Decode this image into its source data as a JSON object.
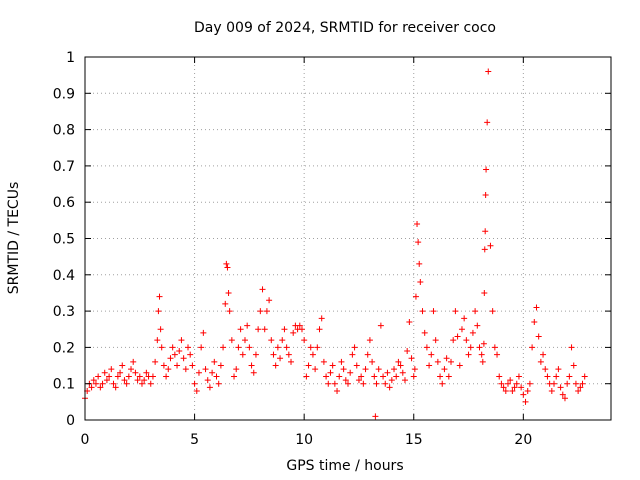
{
  "chart_data": {
    "type": "scatter",
    "title": "Day 009 of 2024, SRMTID for receiver coco",
    "xlabel": "GPS time / hours",
    "ylabel": "SRMTID / TECUs",
    "xlim": [
      0,
      24
    ],
    "ylim": [
      0,
      1
    ],
    "x_ticks": [
      0,
      5,
      10,
      15,
      20
    ],
    "x_tick_labels": [
      "0",
      "5",
      "10",
      "15",
      "20"
    ],
    "y_ticks": [
      0,
      0.1,
      0.2,
      0.3,
      0.4,
      0.5,
      0.6,
      0.7,
      0.8,
      0.9,
      1
    ],
    "y_tick_labels": [
      "0",
      "0.1",
      "0.2",
      "0.3",
      "0.4",
      "0.5",
      "0.6",
      "0.7",
      "0.8",
      "0.9",
      "1"
    ],
    "grid": true,
    "marker": "+",
    "color": "#ff0000",
    "series": [
      {
        "name": "SRMTID",
        "x": [
          0.0,
          0.1,
          0.2,
          0.3,
          0.4,
          0.5,
          0.6,
          0.7,
          0.8,
          0.9,
          1.0,
          1.1,
          1.2,
          1.3,
          1.4,
          1.5,
          1.6,
          1.7,
          1.8,
          1.9,
          2.0,
          2.1,
          2.2,
          2.3,
          2.4,
          2.5,
          2.6,
          2.7,
          2.8,
          2.9,
          3.0,
          3.1,
          3.2,
          3.3,
          3.35,
          3.4,
          3.45,
          3.5,
          3.6,
          3.7,
          3.8,
          3.9,
          4.0,
          4.1,
          4.2,
          4.3,
          4.4,
          4.5,
          4.6,
          4.7,
          4.8,
          4.9,
          5.0,
          5.1,
          5.2,
          5.3,
          5.4,
          5.5,
          5.6,
          5.7,
          5.8,
          5.9,
          6.0,
          6.1,
          6.2,
          6.3,
          6.4,
          6.45,
          6.5,
          6.55,
          6.6,
          6.7,
          6.8,
          6.9,
          7.0,
          7.1,
          7.2,
          7.3,
          7.4,
          7.5,
          7.6,
          7.7,
          7.8,
          7.9,
          8.0,
          8.1,
          8.2,
          8.3,
          8.4,
          8.5,
          8.6,
          8.7,
          8.8,
          8.9,
          9.0,
          9.1,
          9.2,
          9.3,
          9.4,
          9.5,
          9.6,
          9.7,
          9.8,
          9.9,
          10.0,
          10.1,
          10.2,
          10.3,
          10.4,
          10.5,
          10.6,
          10.7,
          10.8,
          10.9,
          11.0,
          11.1,
          11.2,
          11.3,
          11.4,
          11.5,
          11.6,
          11.7,
          11.8,
          11.9,
          12.0,
          12.1,
          12.2,
          12.3,
          12.4,
          12.5,
          12.6,
          12.7,
          12.8,
          12.9,
          13.0,
          13.1,
          13.2,
          13.25,
          13.3,
          13.4,
          13.5,
          13.6,
          13.7,
          13.8,
          13.9,
          14.0,
          14.1,
          14.2,
          14.3,
          14.4,
          14.5,
          14.6,
          14.7,
          14.8,
          14.9,
          15.0,
          15.05,
          15.1,
          15.15,
          15.2,
          15.25,
          15.3,
          15.4,
          15.5,
          15.6,
          15.7,
          15.8,
          15.9,
          16.0,
          16.1,
          16.2,
          16.3,
          16.4,
          16.5,
          16.6,
          16.7,
          16.8,
          16.9,
          17.0,
          17.1,
          17.2,
          17.3,
          17.4,
          17.5,
          17.6,
          17.7,
          17.8,
          17.9,
          18.0,
          18.1,
          18.15,
          18.2,
          18.22,
          18.24,
          18.26,
          18.28,
          18.3,
          18.35,
          18.4,
          18.5,
          18.6,
          18.7,
          18.8,
          18.9,
          19.0,
          19.1,
          19.2,
          19.3,
          19.4,
          19.5,
          19.6,
          19.7,
          19.8,
          19.9,
          20.0,
          20.1,
          20.2,
          20.3,
          20.4,
          20.5,
          20.6,
          20.7,
          20.8,
          20.9,
          21.0,
          21.1,
          21.2,
          21.3,
          21.4,
          21.5,
          21.6,
          21.7,
          21.8,
          21.9,
          22.0,
          22.1,
          22.2,
          22.3,
          22.4,
          22.5,
          22.6,
          22.7,
          22.8
        ],
        "y": [
          0.06,
          0.08,
          0.1,
          0.09,
          0.11,
          0.1,
          0.12,
          0.09,
          0.1,
          0.13,
          0.11,
          0.12,
          0.14,
          0.1,
          0.09,
          0.12,
          0.13,
          0.15,
          0.11,
          0.1,
          0.12,
          0.14,
          0.16,
          0.13,
          0.11,
          0.12,
          0.1,
          0.11,
          0.13,
          0.12,
          0.1,
          0.12,
          0.16,
          0.22,
          0.3,
          0.34,
          0.25,
          0.2,
          0.15,
          0.12,
          0.14,
          0.17,
          0.2,
          0.18,
          0.15,
          0.19,
          0.22,
          0.17,
          0.14,
          0.2,
          0.18,
          0.15,
          0.1,
          0.08,
          0.13,
          0.2,
          0.24,
          0.14,
          0.11,
          0.09,
          0.13,
          0.16,
          0.12,
          0.1,
          0.15,
          0.2,
          0.32,
          0.43,
          0.42,
          0.35,
          0.3,
          0.22,
          0.12,
          0.14,
          0.2,
          0.25,
          0.18,
          0.22,
          0.26,
          0.2,
          0.15,
          0.13,
          0.18,
          0.25,
          0.3,
          0.36,
          0.25,
          0.3,
          0.33,
          0.22,
          0.18,
          0.15,
          0.2,
          0.17,
          0.22,
          0.25,
          0.2,
          0.18,
          0.16,
          0.24,
          0.26,
          0.25,
          0.26,
          0.25,
          0.22,
          0.12,
          0.15,
          0.2,
          0.18,
          0.14,
          0.2,
          0.25,
          0.28,
          0.16,
          0.12,
          0.1,
          0.13,
          0.15,
          0.1,
          0.08,
          0.12,
          0.16,
          0.14,
          0.11,
          0.1,
          0.13,
          0.18,
          0.2,
          0.15,
          0.11,
          0.12,
          0.1,
          0.14,
          0.18,
          0.22,
          0.16,
          0.12,
          0.01,
          0.1,
          0.14,
          0.26,
          0.12,
          0.1,
          0.13,
          0.09,
          0.11,
          0.14,
          0.12,
          0.16,
          0.15,
          0.13,
          0.11,
          0.19,
          0.27,
          0.17,
          0.12,
          0.14,
          0.34,
          0.54,
          0.49,
          0.43,
          0.38,
          0.3,
          0.24,
          0.2,
          0.15,
          0.18,
          0.3,
          0.22,
          0.16,
          0.12,
          0.1,
          0.14,
          0.17,
          0.12,
          0.16,
          0.22,
          0.3,
          0.23,
          0.15,
          0.25,
          0.28,
          0.22,
          0.18,
          0.2,
          0.24,
          0.3,
          0.26,
          0.2,
          0.18,
          0.16,
          0.21,
          0.35,
          0.47,
          0.52,
          0.62,
          0.69,
          0.82,
          0.96,
          0.48,
          0.3,
          0.2,
          0.18,
          0.12,
          0.1,
          0.09,
          0.08,
          0.1,
          0.11,
          0.08,
          0.09,
          0.1,
          0.12,
          0.09,
          0.07,
          0.05,
          0.08,
          0.1,
          0.2,
          0.27,
          0.31,
          0.23,
          0.16,
          0.18,
          0.14,
          0.12,
          0.1,
          0.08,
          0.1,
          0.12,
          0.14,
          0.09,
          0.07,
          0.06,
          0.1,
          0.12,
          0.2,
          0.15,
          0.1,
          0.08,
          0.09,
          0.1,
          0.12
        ]
      }
    ]
  }
}
